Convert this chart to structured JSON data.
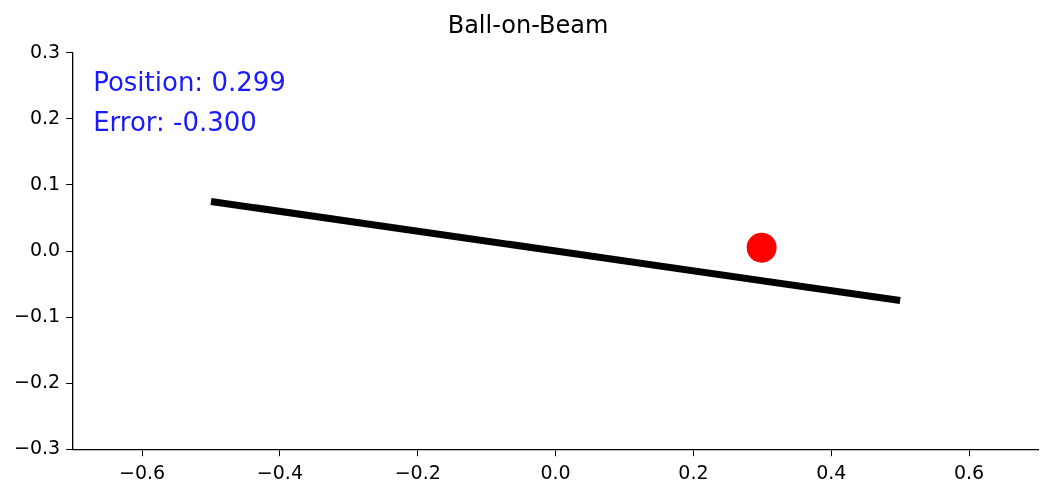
{
  "chart_data": {
    "type": "line",
    "title": "Ball-on-Beam",
    "series": [
      {
        "color": "#000000",
        "x": [
          -0.5,
          0.5
        ],
        "values": [
          0.075,
          -0.075
        ]
      },
      {
        "type": "scatter",
        "marker": "circle",
        "color": "#ff0000",
        "x": [
          0.299
        ],
        "values": [
          0.005
        ]
      }
    ],
    "xlim": [
      -0.7,
      0.7
    ],
    "ylim": [
      -0.3,
      0.3
    ],
    "xticks": [
      {
        "value": -0.6,
        "label": "−0.6"
      },
      {
        "value": -0.4,
        "label": "−0.4"
      },
      {
        "value": -0.2,
        "label": "−0.2"
      },
      {
        "value": 0,
        "label": "0.0"
      },
      0.2,
      0.4,
      0.6
    ],
    "yticks": [
      {
        "value": -0.3,
        "label": "−0.3"
      },
      {
        "value": -0.2,
        "label": "−0.2"
      },
      {
        "value": -0.1,
        "label": "−0.1"
      },
      {
        "value": 0,
        "label": "0.0"
      },
      0.1,
      0.2,
      0.3
    ],
    "annotations": [
      "Position: 0.299",
      "Error: -0.300"
    ],
    "grid": false,
    "legend": false,
    "marker": "none",
    "line_style": "solid"
  }
}
